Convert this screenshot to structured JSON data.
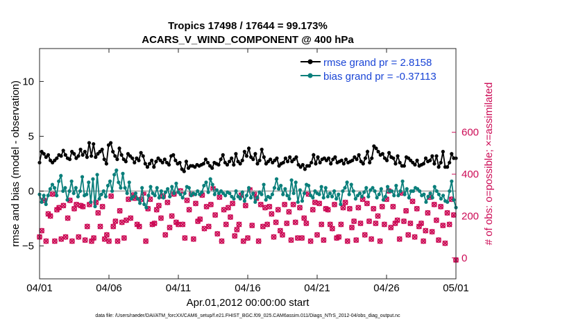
{
  "chart_data": {
    "type": "line",
    "title": "Tropics 17498 / 17644 = 99.173%",
    "subtitle": "ACARS_V_WIND_COMPONENT @ 400 hPa",
    "xlabel": "Apr.01,2012 00:00:00 start",
    "ylabel": "rmse and bias (model - observation)",
    "ylabel_right": "# of obs: o=possible; ×=assimilated",
    "x_ticks": [
      "04/01",
      "04/06",
      "04/11",
      "04/16",
      "04/21",
      "04/26",
      "05/01"
    ],
    "x_range_days": [
      0,
      30
    ],
    "ylim": [
      -8,
      13
    ],
    "y_ticks": [
      -5,
      0,
      5,
      10
    ],
    "ylim_right": [
      -100,
      1000
    ],
    "y_ticks_right": [
      0,
      200,
      400,
      600
    ],
    "zero_line": 0,
    "series": [
      {
        "name": "rmse grand pr = 2.8158",
        "color": "#000000",
        "values": [
          2.6,
          3.6,
          3.4,
          3.1,
          3.3,
          2.8,
          2.6,
          2.8,
          3.0,
          3.3,
          3.2,
          3.7,
          3.3,
          3.0,
          2.9,
          3.6,
          3.4,
          3.0,
          3.2,
          3.8,
          3.3,
          3.6,
          3.1,
          4.4,
          3.2,
          4.3,
          3.1,
          3.4,
          3.6,
          3.8,
          2.9,
          2.5,
          4.2,
          4.4,
          3.6,
          3.2,
          2.9,
          3.9,
          3.3,
          2.9,
          2.7,
          3.4,
          3.2,
          3.0,
          2.6,
          3.0,
          2.8,
          3.5,
          3.2,
          2.5,
          2.2,
          2.5,
          2.8,
          2.2,
          2.7,
          3.0,
          2.8,
          2.6,
          2.9,
          2.6,
          2.4,
          3.2,
          3.3,
          2.8,
          2.5,
          2.6,
          2.0,
          1.8,
          2.7,
          2.1,
          2.3,
          2.3,
          2.2,
          2.4,
          2.3,
          2.4,
          2.5,
          2.9,
          2.6,
          2.3,
          2.1,
          2.6,
          2.5,
          2.4,
          2.9,
          3.3,
          2.6,
          2.4,
          2.7,
          3.0,
          2.4,
          3.4,
          2.7,
          2.5,
          2.8,
          3.6,
          3.2,
          3.9,
          3.1,
          2.9,
          3.4,
          2.5,
          2.8,
          3.8,
          3.1,
          2.5,
          2.7,
          2.9,
          2.6,
          2.8,
          3.0,
          2.3,
          2.5,
          2.6,
          3.0,
          2.7,
          3.1,
          2.7,
          2.9,
          3.1,
          2.4,
          2.2,
          2.4,
          2.0,
          2.3,
          2.3,
          2.6,
          3.3,
          2.5,
          3.1,
          2.6,
          2.9,
          3.0,
          2.8,
          3.0,
          2.5,
          2.9,
          3.1,
          2.6,
          2.7,
          2.8,
          2.5,
          2.9,
          2.6,
          2.7,
          2.8,
          3.1,
          2.9,
          3.3,
          2.7,
          2.5,
          3.0,
          3.6,
          2.6,
          3.0,
          4.1,
          3.9,
          3.6,
          3.3,
          3.4,
          3.0,
          2.8,
          3.5,
          3.1,
          3.0,
          2.5,
          3.2,
          2.6,
          2.3,
          2.3,
          3.1,
          3.0,
          2.8,
          2.6,
          2.4,
          2.8,
          2.3,
          2.4,
          2.5,
          3.0,
          2.7,
          2.8,
          3.2,
          2.5,
          3.2,
          2.2,
          2.6,
          3.6,
          2.2,
          2.2,
          2.6,
          3.4,
          3.0,
          3.0
        ]
      },
      {
        "name": "bias grand pr = -0.37113",
        "color": "#0a7f7b",
        "values": [
          -0.3,
          -1.0,
          -0.4,
          -1.2,
          -0.4,
          0.2,
          0.6,
          0.3,
          -0.4,
          0.9,
          1.4,
          0.0,
          0.3,
          -0.8,
          0.0,
          0.9,
          -0.2,
          0.3,
          -0.5,
          0.0,
          1.3,
          -0.4,
          -0.3,
          0.8,
          -1.0,
          1.1,
          -1.4,
          1.5,
          -0.7,
          -0.3,
          0.0,
          -0.5,
          0.5,
          0.9,
          0.0,
          1.5,
          1.9,
          0.8,
          0.3,
          1.6,
          0.3,
          -0.2,
          0.8,
          -0.7,
          -0.5,
          -0.2,
          -0.7,
          -1.1,
          0.3,
          -1.2,
          -1.5,
          -0.4,
          0.4,
          -0.2,
          -0.4,
          0.3,
          -0.6,
          0.0,
          -0.6,
          -0.1,
          0.2,
          -0.5,
          0.4,
          -0.2,
          0.7,
          -0.1,
          -0.3,
          -0.6,
          -0.2,
          0.4,
          0.3,
          -0.4,
          -0.2,
          -0.3,
          0.0,
          -0.3,
          -0.1,
          0.5,
          0.8,
          -0.1,
          1.1,
          0.6,
          -0.3,
          0.1,
          -0.2,
          0.0,
          -0.2,
          -0.4,
          -0.1,
          -0.2,
          -0.5,
          -0.7,
          0.0,
          -0.5,
          -0.7,
          -0.1,
          -0.9,
          -0.4,
          0.3,
          -0.6,
          -0.2,
          -1.0,
          -0.6,
          -0.1,
          -0.3,
          0.6,
          -0.8,
          -0.5,
          -0.6,
          -0.3,
          0.3,
          1.1,
          0.2,
          0.5,
          -0.3,
          0.2,
          -0.4,
          -0.7,
          1.0,
          -0.2,
          0.8,
          -1.0,
          0.1,
          -0.9,
          -0.2,
          0.6,
          0.5,
          -0.4,
          -0.6,
          0.0,
          -0.2,
          -0.3,
          0.4,
          -0.6,
          0.3,
          -0.5,
          -0.2,
          -0.5,
          0.0,
          -0.7,
          -0.3,
          -1.2,
          0.0,
          0.3,
          0.8,
          -0.3,
          0.6,
          0.0,
          -0.7,
          -0.4,
          -0.2,
          -0.5,
          -0.1,
          0.3,
          -0.5,
          0.1,
          0.3,
          0.0,
          -0.6,
          -0.3,
          0.2,
          -0.8,
          -0.5,
          0.4,
          0.0,
          0.0,
          -0.4,
          0.5,
          -0.4,
          0.0,
          0.9,
          -0.3,
          0.2,
          -0.6,
          0.0,
          0.0,
          0.3,
          0.2,
          0.0,
          -0.4,
          -0.3,
          -1.0,
          -0.5,
          -0.2,
          -0.6,
          0.4,
          0.0,
          -0.3,
          -0.7,
          -0.4,
          -0.9,
          -1.0,
          0.0,
          0.9,
          -0.8,
          -1.5
        ]
      },
      {
        "name": "obs possible",
        "color": "#cc0a55",
        "marker": "o",
        "values": [
          100,
          130,
          275,
          80,
          210,
          200,
          305,
          80,
          230,
          240,
          90,
          250,
          100,
          190,
          275,
          80,
          235,
          255,
          100,
          250,
          245,
          85,
          150,
          255,
          80,
          95,
          265,
          215,
          150,
          245,
          90,
          110,
          80,
          295,
          150,
          175,
          80,
          225,
          170,
          95,
          180,
          280,
          190,
          300,
          285,
          160,
          150,
          280,
          310,
          80,
          235,
          280,
          160,
          165,
          230,
          250,
          190,
          295,
          110,
          265,
          145,
          200,
          305,
          170,
          160,
          320,
          160,
          95,
          275,
          230,
          305,
          90,
          260,
          175,
          185,
          300,
          140,
          245,
          150,
          255,
          330,
          205,
          115,
          290,
          80,
          230,
          160,
          240,
          195,
          260,
          105,
          135,
          160,
          300,
          80,
          250,
          95,
          325,
          155,
          310,
          285,
          80,
          255,
          150,
          240,
          160,
          245,
          210,
          100,
          170,
          230,
          130,
          110,
          255,
          165,
          220,
          85,
          255,
          170,
          95,
          240,
          95,
          190,
          165,
          305,
          80,
          230,
          265,
          110,
          260,
          160,
          85,
          235,
          230,
          160,
          140,
          255,
          95,
          100,
          160,
          240,
          265,
          80,
          235,
          145,
          175,
          85,
          240,
          165,
          280,
          110,
          260,
          175,
          90,
          235,
          165,
          200,
          80,
          245,
          160,
          280,
          320,
          145,
          245,
          165,
          180,
          90,
          310,
          175,
          225,
          110,
          165,
          270,
          100,
          235,
          150,
          165,
          80,
          130,
          215,
          290,
          125,
          255,
          180,
          85,
          245,
          155,
          70,
          215,
          160,
          280,
          205,
          -10
        ]
      },
      {
        "name": "obs assimilated",
        "color": "#cc0a55",
        "marker": "x",
        "values": [
          100,
          130,
          275,
          80,
          210,
          200,
          305,
          80,
          230,
          240,
          90,
          250,
          100,
          190,
          275,
          80,
          235,
          255,
          100,
          250,
          245,
          85,
          150,
          255,
          80,
          95,
          265,
          215,
          150,
          245,
          90,
          110,
          80,
          295,
          150,
          175,
          80,
          225,
          170,
          95,
          180,
          280,
          190,
          300,
          285,
          160,
          150,
          280,
          310,
          80,
          235,
          280,
          160,
          165,
          230,
          250,
          190,
          295,
          110,
          265,
          145,
          200,
          305,
          170,
          160,
          320,
          160,
          95,
          275,
          230,
          305,
          90,
          260,
          175,
          185,
          300,
          140,
          245,
          150,
          255,
          330,
          205,
          115,
          290,
          80,
          230,
          160,
          240,
          195,
          260,
          105,
          135,
          160,
          300,
          80,
          250,
          95,
          325,
          155,
          310,
          285,
          80,
          255,
          150,
          240,
          160,
          245,
          210,
          100,
          170,
          230,
          130,
          110,
          255,
          165,
          220,
          85,
          255,
          170,
          95,
          240,
          95,
          190,
          165,
          305,
          80,
          230,
          265,
          110,
          260,
          160,
          85,
          235,
          230,
          160,
          140,
          255,
          95,
          100,
          160,
          240,
          265,
          80,
          235,
          145,
          175,
          85,
          240,
          165,
          280,
          110,
          260,
          175,
          90,
          235,
          165,
          200,
          80,
          245,
          160,
          280,
          320,
          145,
          245,
          165,
          180,
          90,
          310,
          175,
          225,
          110,
          165,
          270,
          100,
          235,
          150,
          165,
          80,
          130,
          215,
          290,
          125,
          255,
          180,
          85,
          245,
          155,
          70,
          215,
          160,
          280,
          205,
          -10
        ]
      }
    ],
    "legend": [
      "rmse grand pr = 2.8158",
      "bias grand pr = -0.37113"
    ],
    "legend_location": "top-right",
    "footer": "data file: /Users/raeder/DAI/ATM_forcXX/CAM6_setup/f.e21.FHIST_BGC.f09_025.CAM6assim.011/Diags_NTrS_2012-04/obs_diag_output.nc"
  }
}
